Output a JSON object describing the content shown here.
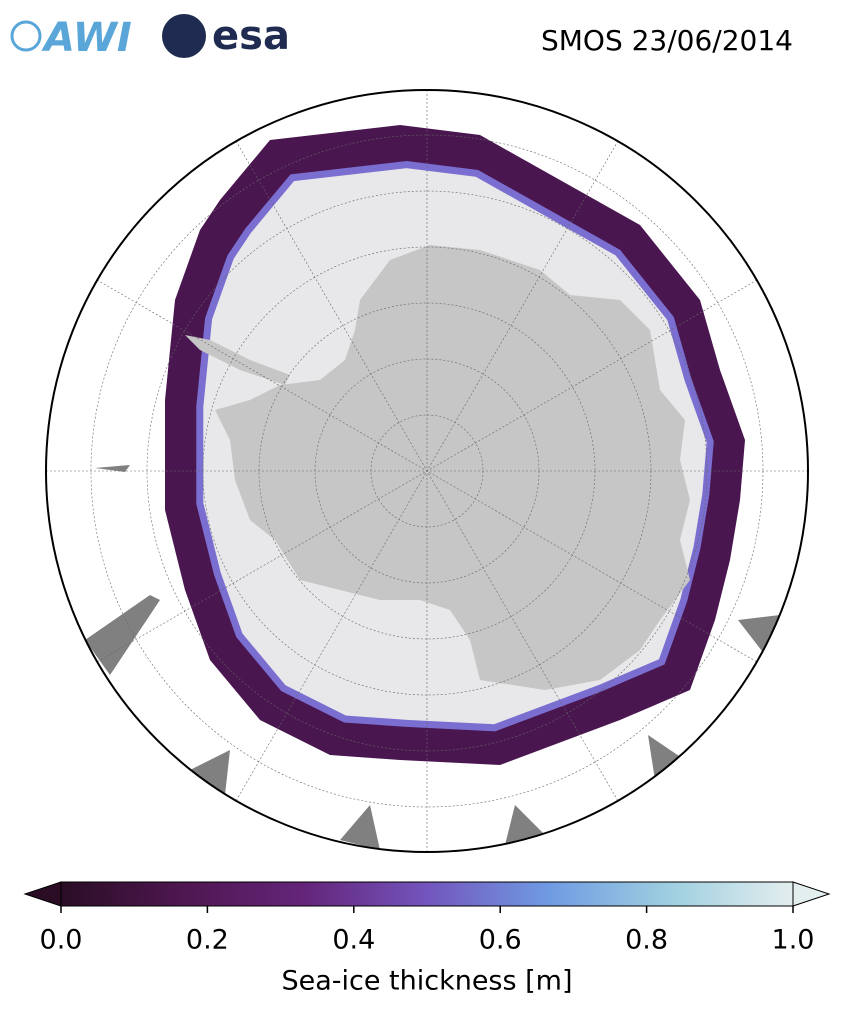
{
  "header": {
    "logos": [
      "AWI",
      "esa"
    ],
    "title": "SMOS 23/06/2014"
  },
  "colorbar": {
    "label": "Sea-ice thickness [m]",
    "lim": [
      0,
      1
    ],
    "ticks": [
      {
        "value": 0,
        "label": "0.0"
      },
      {
        "value": 0.2,
        "label": "0.2"
      },
      {
        "value": 0.4,
        "label": "0.4"
      },
      {
        "value": 0.6,
        "label": "0.6"
      },
      {
        "value": 0.8,
        "label": "0.8"
      },
      {
        "value": 1,
        "label": "1.0"
      }
    ],
    "colormap": [
      "#2a0d25",
      "#4e1750",
      "#64257a",
      "#7355bd",
      "#6f9be2",
      "#9fcfe0",
      "#e3eeee"
    ]
  }
}
